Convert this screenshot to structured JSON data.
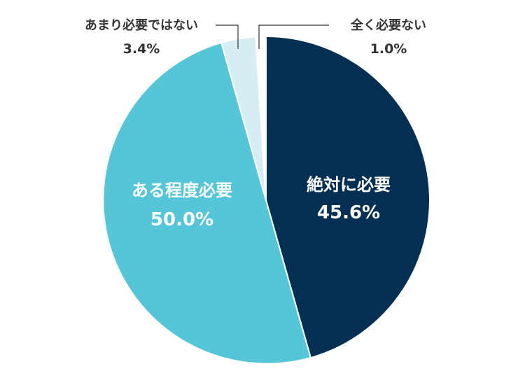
{
  "chart_data": {
    "type": "pie",
    "title": "",
    "slices": [
      {
        "label": "絶対に必要",
        "value": 45.6,
        "value_label": "45.6%",
        "color": "#022f52",
        "label_position": "inside"
      },
      {
        "label": "ある程度必要",
        "value": 50.0,
        "value_label": "50.0%",
        "color": "#55c6d8",
        "label_position": "inside"
      },
      {
        "label": "あまり必要ではない",
        "value": 3.4,
        "value_label": "3.4%",
        "color": "#d6eef3",
        "label_position": "outside-left"
      },
      {
        "label": "全く必要ない",
        "value": 1.0,
        "value_label": "1.0%",
        "color": "#ffffff",
        "label_position": "outside-right"
      }
    ],
    "start": "12 o'clock",
    "direction": "clockwise",
    "legend": "none"
  }
}
